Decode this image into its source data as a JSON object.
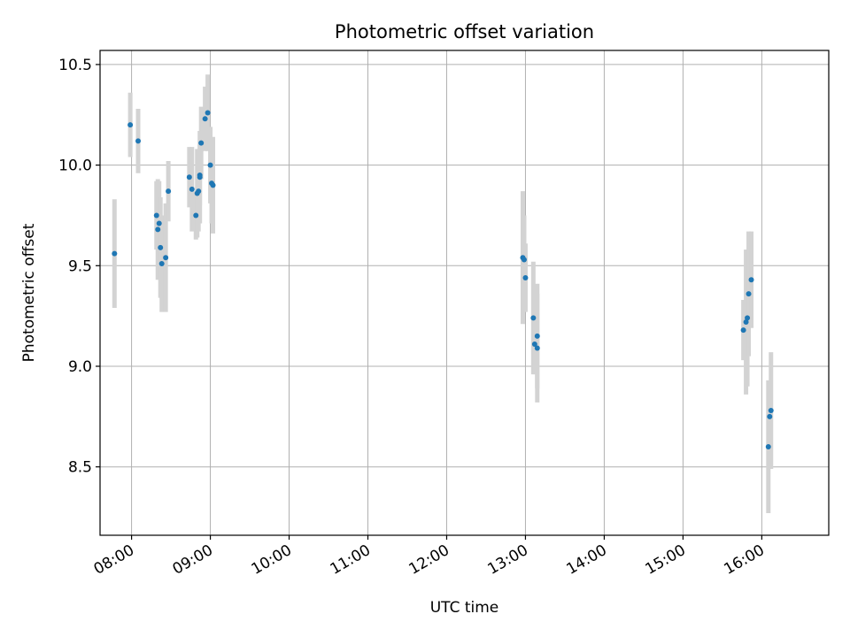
{
  "chart_data": {
    "type": "scatter",
    "title": "Photometric offset variation",
    "xlabel": "UTC time",
    "ylabel": "Photometric offset",
    "x_axis_format": "time HH:MM",
    "xlim": [
      "07:36",
      "16:51"
    ],
    "ylim": [
      8.16,
      10.57
    ],
    "x_ticks": [
      "08:00",
      "09:00",
      "10:00",
      "11:00",
      "12:00",
      "13:00",
      "14:00",
      "15:00",
      "16:00"
    ],
    "y_ticks": [
      "8.5",
      "9.0",
      "9.5",
      "10.0",
      "10.5"
    ],
    "grid": true,
    "legend": "none",
    "marker_color": "#1f77b4",
    "errorbar_color": "#d3d3d3",
    "points": [
      {
        "time": "07:47",
        "y": 9.56,
        "err": 0.27
      },
      {
        "time": "07:59",
        "y": 10.2,
        "err": 0.16
      },
      {
        "time": "08:05",
        "y": 10.12,
        "err": 0.16
      },
      {
        "time": "08:19",
        "y": 9.75,
        "err": 0.17
      },
      {
        "time": "08:20",
        "y": 9.68,
        "err": 0.25
      },
      {
        "time": "08:21",
        "y": 9.71,
        "err": 0.21
      },
      {
        "time": "08:22",
        "y": 9.59,
        "err": 0.25
      },
      {
        "time": "08:23",
        "y": 9.51,
        "err": 0.24
      },
      {
        "time": "08:26",
        "y": 9.54,
        "err": 0.27
      },
      {
        "time": "08:28",
        "y": 9.87,
        "err": 0.15
      },
      {
        "time": "08:44",
        "y": 9.94,
        "err": 0.15
      },
      {
        "time": "08:46",
        "y": 9.88,
        "err": 0.21
      },
      {
        "time": "08:49",
        "y": 9.75,
        "err": 0.12
      },
      {
        "time": "08:50",
        "y": 9.86,
        "err": 0.22
      },
      {
        "time": "08:51",
        "y": 9.87,
        "err": 0.2
      },
      {
        "time": "08:52",
        "y": 9.95,
        "err": 0.15
      },
      {
        "time": "08:52",
        "y": 9.94,
        "err": 0.23
      },
      {
        "time": "08:53",
        "y": 10.11,
        "err": 0.18
      },
      {
        "time": "08:56",
        "y": 10.23,
        "err": 0.16
      },
      {
        "time": "08:58",
        "y": 10.26,
        "err": 0.19
      },
      {
        "time": "09:00",
        "y": 10.0,
        "err": 0.19
      },
      {
        "time": "09:01",
        "y": 9.91,
        "err": 0.2
      },
      {
        "time": "09:02",
        "y": 9.9,
        "err": 0.24
      },
      {
        "time": "12:58",
        "y": 9.54,
        "err": 0.33
      },
      {
        "time": "12:59",
        "y": 9.53,
        "err": 0.22
      },
      {
        "time": "13:00",
        "y": 9.44,
        "err": 0.17
      },
      {
        "time": "13:06",
        "y": 9.24,
        "err": 0.28
      },
      {
        "time": "13:07",
        "y": 9.11,
        "err": 0.15
      },
      {
        "time": "13:09",
        "y": 9.15,
        "err": 0.26
      },
      {
        "time": "13:09",
        "y": 9.09,
        "err": 0.27
      },
      {
        "time": "15:46",
        "y": 9.18,
        "err": 0.15
      },
      {
        "time": "15:48",
        "y": 9.22,
        "err": 0.36
      },
      {
        "time": "15:49",
        "y": 9.24,
        "err": 0.34
      },
      {
        "time": "15:50",
        "y": 9.36,
        "err": 0.31
      },
      {
        "time": "15:52",
        "y": 9.43,
        "err": 0.24
      },
      {
        "time": "16:05",
        "y": 8.6,
        "err": 0.33
      },
      {
        "time": "16:06",
        "y": 8.75,
        "err": 0.17
      },
      {
        "time": "16:07",
        "y": 8.78,
        "err": 0.29
      }
    ]
  }
}
